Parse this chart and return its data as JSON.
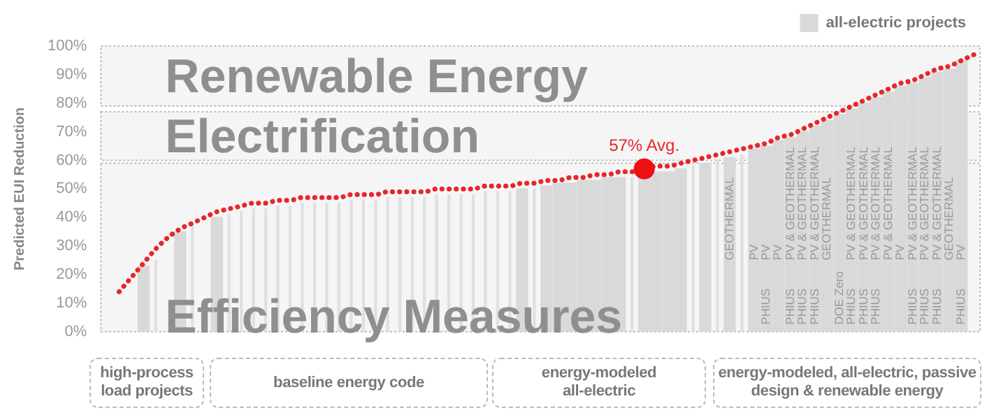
{
  "chart_data": {
    "type": "bar",
    "ylabel": "Predicted EUI Reduction",
    "categories": [
      null,
      null,
      null,
      null,
      null,
      null,
      null,
      null,
      null,
      null,
      null,
      null,
      null,
      null,
      null,
      null,
      null,
      null,
      null,
      null,
      null,
      null,
      null,
      null,
      null,
      null,
      null,
      null,
      null,
      null,
      null,
      null,
      null,
      null,
      null,
      null,
      null,
      null,
      null,
      null,
      null,
      null,
      null,
      null,
      null,
      null,
      null,
      null,
      null,
      null,
      null,
      "GEOTHERMAL",
      null,
      "PV",
      "PV",
      "PV",
      "PV & GEOTHERMAL",
      "PV & GEOTHERMAL",
      "PV & GEOTHERMAL",
      "GEOTHERMAL",
      null,
      "PV & GEOTHERMAL",
      "PV & GEOTHERMAL",
      "PV & GEOTHERMAL",
      "PV & GEOTHERMAL",
      "PV",
      "PV & GEOTHERMAL",
      "PV & GEOTHERMAL",
      "PV & GEOTHERMAL",
      "GEOTHERMAL",
      "PV",
      null
    ],
    "series": [
      {
        "name": "all-electric projects",
        "color": "#d9d9d9",
        "values": [
          null,
          null,
          null,
          23,
          null,
          null,
          35,
          null,
          null,
          40,
          null,
          null,
          null,
          null,
          null,
          null,
          null,
          null,
          null,
          null,
          null,
          null,
          null,
          null,
          null,
          null,
          null,
          null,
          null,
          null,
          null,
          null,
          null,
          null,
          50,
          null,
          51,
          52,
          52,
          53,
          53,
          54,
          54,
          null,
          55,
          56,
          56,
          57,
          null,
          59,
          null,
          61,
          null,
          64,
          65,
          67,
          68,
          70,
          72,
          74,
          76,
          78,
          80,
          82,
          84,
          86,
          87,
          89,
          91,
          92,
          95,
          null
        ],
        "value_labels": [
          null,
          null,
          null,
          null,
          null,
          null,
          null,
          null,
          null,
          null,
          null,
          null,
          null,
          null,
          null,
          null,
          null,
          null,
          null,
          null,
          null,
          null,
          null,
          null,
          null,
          null,
          null,
          null,
          null,
          null,
          null,
          null,
          null,
          null,
          null,
          null,
          null,
          null,
          null,
          null,
          null,
          null,
          null,
          null,
          null,
          null,
          null,
          null,
          null,
          null,
          null,
          null,
          null,
          null,
          "PHIUS",
          null,
          "PHIUS",
          "PHIUS",
          "PHIUS",
          null,
          "DOE Zero",
          "PHIUS",
          "PHIUS",
          "PHIUS",
          null,
          null,
          "PHIUS",
          "PHIUS",
          "PHIUS",
          null,
          "PHIUS",
          null
        ]
      },
      {
        "color": "#e0e0e0",
        "values": [
          null,
          null,
          null,
          null,
          25,
          null,
          null,
          37,
          null,
          null,
          41,
          42,
          43,
          43,
          44,
          44,
          45,
          45,
          45,
          45,
          46,
          46,
          46,
          47,
          47,
          47,
          47,
          48,
          48,
          48,
          48,
          49,
          49,
          49,
          null,
          50,
          null,
          null,
          null,
          null,
          null,
          null,
          null,
          54,
          null,
          null,
          null,
          null,
          58,
          null,
          60,
          null,
          62,
          null,
          null,
          null,
          null,
          null,
          null,
          null,
          null,
          null,
          null,
          null,
          null,
          null,
          null,
          null,
          null,
          null,
          null,
          null
        ]
      },
      {
        "type": "line",
        "color": "#e8262a",
        "line_style": "dotted",
        "marker": "none",
        "values": [
          null,
          14,
          19,
          24,
          29,
          33,
          36,
          38,
          40,
          42,
          43,
          44,
          45,
          45,
          46,
          46,
          47,
          47,
          47,
          47,
          48,
          48,
          48,
          49,
          49,
          49,
          49,
          50,
          50,
          50,
          50,
          51,
          51,
          51,
          52,
          52,
          53,
          53,
          54,
          54,
          55,
          55,
          56,
          56,
          57,
          58,
          58,
          59,
          60,
          61,
          62,
          63,
          64,
          65,
          66,
          68,
          69,
          71,
          73,
          75,
          77,
          79,
          81,
          83,
          85,
          87,
          88,
          90,
          92,
          93,
          95,
          97
        ]
      },
      {
        "type": "scatter",
        "color": "#ee1111",
        "marker": "circle",
        "values": [
          null,
          null,
          null,
          null,
          null,
          null,
          null,
          null,
          null,
          null,
          null,
          null,
          null,
          null,
          null,
          null,
          null,
          null,
          null,
          null,
          null,
          null,
          null,
          null,
          null,
          null,
          null,
          null,
          null,
          null,
          null,
          null,
          null,
          null,
          null,
          null,
          null,
          null,
          null,
          null,
          null,
          null,
          null,
          null,
          57,
          null,
          null,
          null,
          null,
          null,
          null,
          null,
          null,
          null,
          null,
          null,
          null,
          null,
          null,
          null,
          null,
          null,
          null,
          null,
          null,
          null,
          null,
          null,
          null,
          null,
          null,
          null
        ]
      }
    ],
    "ylim": [
      0,
      100
    ],
    "yticks": [
      {
        "value": 0,
        "label": "0%"
      },
      {
        "value": 10,
        "label": "10%"
      },
      {
        "value": 20,
        "label": "20%"
      },
      {
        "value": 30,
        "label": "30%"
      },
      {
        "value": 40,
        "label": "40%"
      },
      {
        "value": 50,
        "label": "50%"
      },
      {
        "value": 60,
        "label": "60%"
      },
      {
        "value": 70,
        "label": "70%"
      },
      {
        "value": 80,
        "label": "80%"
      },
      {
        "value": 90,
        "label": "90%"
      },
      {
        "value": 100,
        "label": "100%"
      }
    ],
    "bands": [
      {
        "axis": "y",
        "from": 0,
        "to": 59,
        "label": "Efficiency Measures"
      },
      {
        "axis": "y",
        "from": 60,
        "to": 77,
        "label": "Electrification"
      },
      {
        "axis": "y",
        "from": 79,
        "to": 100,
        "label": "Renewable Energy"
      }
    ],
    "annotations": [
      {
        "text": "57% Avg.",
        "y": 57
      },
      "high-process load projects",
      "baseline energy code",
      "energy-modeled all-electric",
      "energy-modeled, all-electric, passive design & renewable energy"
    ],
    "grid": false,
    "legend": "top right",
    "tick_labels": "y"
  }
}
